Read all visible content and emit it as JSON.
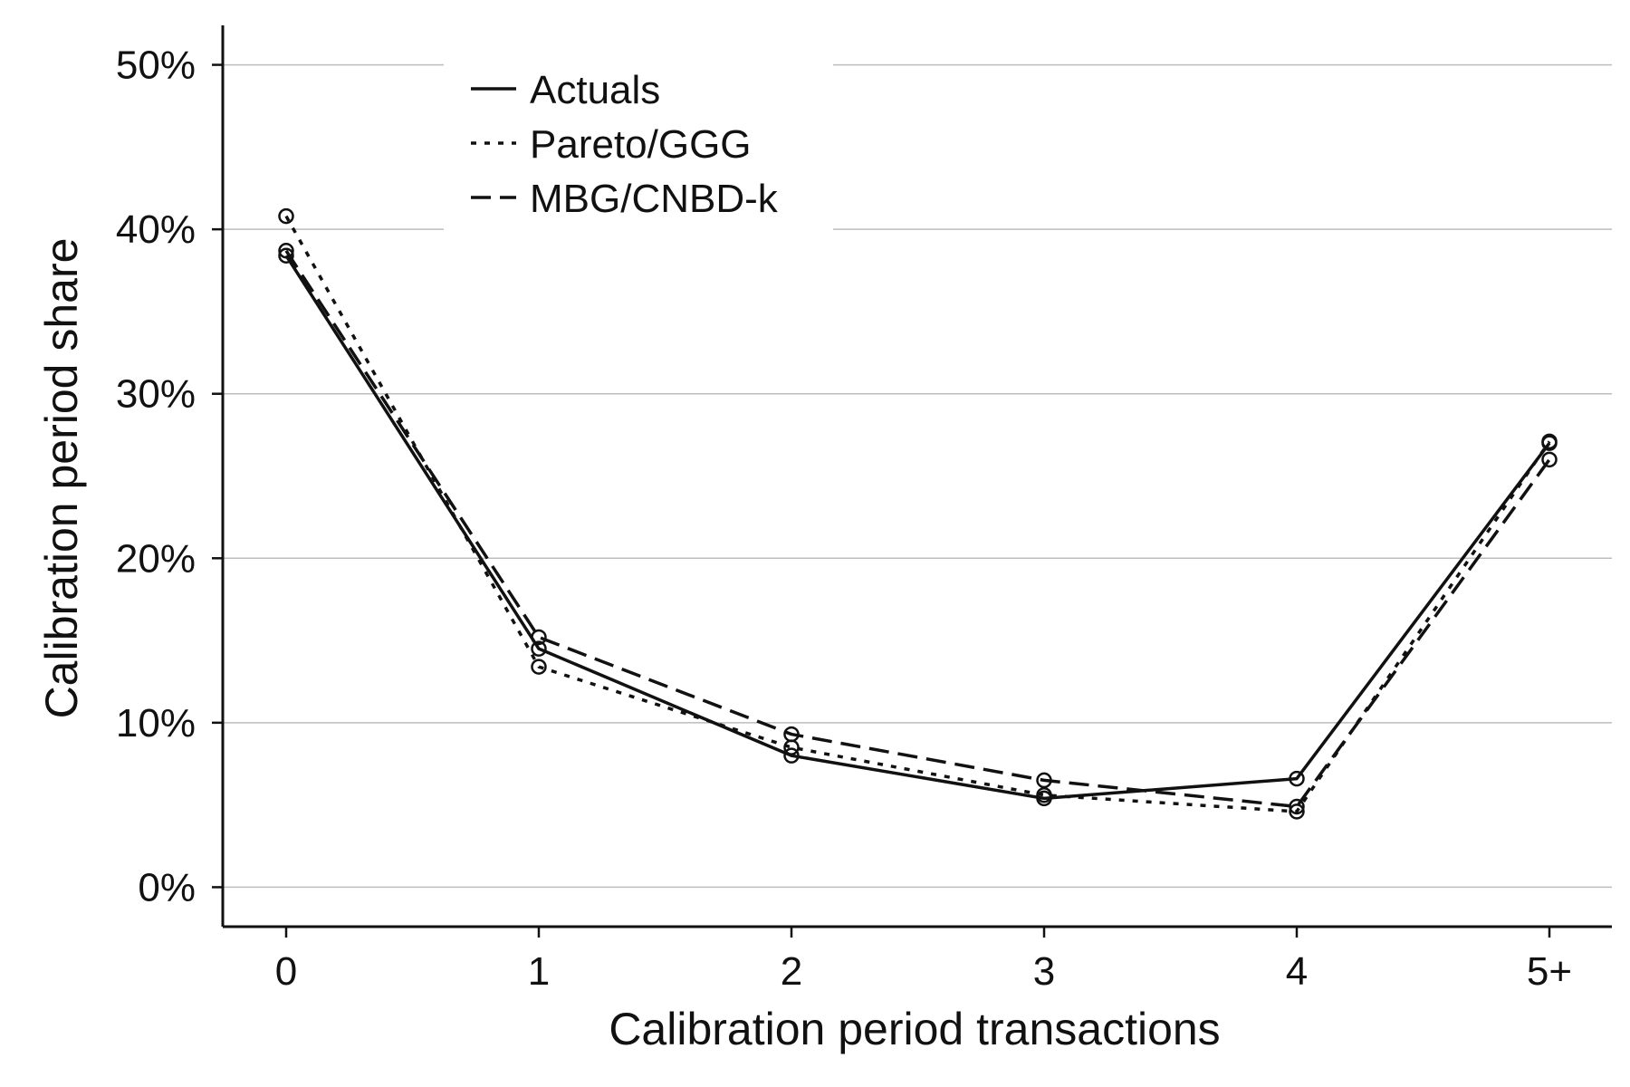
{
  "chart_data": {
    "type": "line",
    "title": "",
    "xlabel": "Calibration period transactions",
    "ylabel": "Calibration period share",
    "categories": [
      "0",
      "1",
      "2",
      "3",
      "4",
      "5+"
    ],
    "ylim": [
      -0.024,
      0.524
    ],
    "yticks": [
      0,
      0.1,
      0.2,
      0.3,
      0.4,
      0.5
    ],
    "ytick_labels": [
      "0%",
      "10%",
      "20%",
      "30%",
      "40%",
      "50%"
    ],
    "grid": "horizontal",
    "legend_position": "top-center",
    "markers": "open-circle",
    "series": [
      {
        "name": "Actuals",
        "line_style": "solid",
        "values": [
          0.384,
          0.145,
          0.08,
          0.054,
          0.066,
          0.27
        ]
      },
      {
        "name": "Pareto/GGG",
        "line_style": "dotted",
        "values": [
          0.408,
          0.134,
          0.085,
          0.056,
          0.046,
          0.271
        ]
      },
      {
        "name": "MBG/CNBD-k",
        "line_style": "dashed",
        "values": [
          0.387,
          0.152,
          0.093,
          0.065,
          0.049,
          0.26
        ]
      }
    ],
    "colors": {
      "line": "#111111",
      "grid": "#bdbdbd",
      "axis": "#111111"
    }
  }
}
